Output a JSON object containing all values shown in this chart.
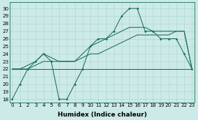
{
  "xlabel": "Humidex (Indice chaleur)",
  "bg_color": "#cceae7",
  "line_color": "#1a6b5e",
  "grid_color": "#aad4ce",
  "x_ticks": [
    0,
    1,
    2,
    3,
    4,
    5,
    6,
    7,
    8,
    9,
    10,
    11,
    12,
    13,
    14,
    15,
    16,
    17,
    18,
    19,
    20,
    21,
    22,
    23
  ],
  "y_ticks": [
    18,
    19,
    20,
    21,
    22,
    23,
    24,
    25,
    26,
    27,
    28,
    29,
    30
  ],
  "ylim": [
    17.6,
    30.8
  ],
  "xlim": [
    -0.3,
    23.3
  ],
  "series1": [
    18,
    20,
    22,
    23,
    24,
    23,
    18,
    18,
    20,
    22,
    25,
    26,
    26,
    27,
    29,
    30,
    30,
    27,
    27,
    26,
    26,
    26,
    24,
    22
  ],
  "series2": [
    22,
    22,
    22,
    22,
    22,
    22,
    22,
    22,
    22,
    22,
    22,
    22,
    22,
    22,
    22,
    22,
    22,
    22,
    22,
    22,
    22,
    22,
    22,
    22
  ],
  "series3": [
    22,
    22,
    22,
    22.5,
    23,
    23,
    23,
    23,
    23,
    23.5,
    24,
    24,
    24.5,
    25,
    25.5,
    26,
    26.5,
    26.5,
    26.5,
    26.5,
    26.5,
    27,
    27,
    22
  ],
  "series4": [
    22,
    22,
    22.5,
    23,
    24,
    23.5,
    23,
    23,
    23,
    24,
    25,
    25.5,
    26,
    26.5,
    27,
    27.5,
    27.5,
    27.5,
    27,
    27,
    27,
    27,
    27,
    22
  ],
  "tick_fontsize": 5.2,
  "xlabel_fontsize": 6.5,
  "linewidth": 0.75,
  "markersize": 1.8
}
